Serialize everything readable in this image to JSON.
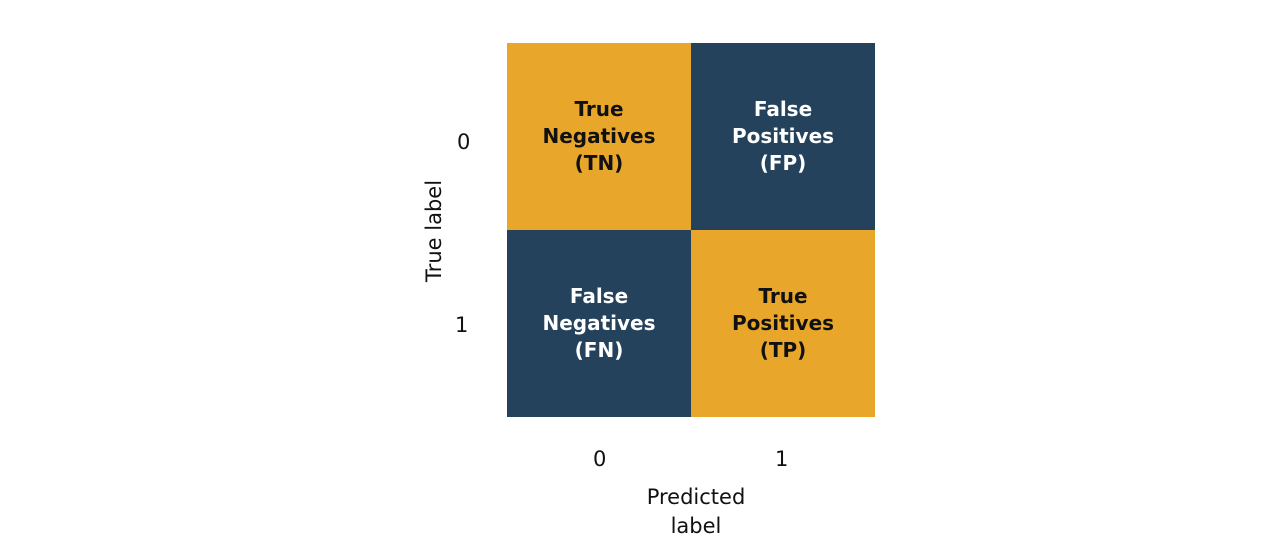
{
  "colors": {
    "orange": "#E8A72A",
    "navy": "#25425D",
    "dark_text": "#111111",
    "light_text": "#FFFFFF"
  },
  "matrix": {
    "cells": [
      {
        "row": 0,
        "col": 0,
        "lines": [
          "True",
          "Negatives",
          "(TN)"
        ],
        "fill": "orange"
      },
      {
        "row": 0,
        "col": 1,
        "lines": [
          "False",
          "Positives",
          "(FP)"
        ],
        "fill": "navy"
      },
      {
        "row": 1,
        "col": 0,
        "lines": [
          "False",
          "Negatives",
          "(FN)"
        ],
        "fill": "navy"
      },
      {
        "row": 1,
        "col": 1,
        "lines": [
          "True",
          "Positives",
          "(TP)"
        ],
        "fill": "orange"
      }
    ]
  },
  "axes": {
    "y": {
      "label": "True label",
      "ticks": [
        "0",
        "1"
      ]
    },
    "x": {
      "label_lines": [
        "Predicted",
        "label"
      ],
      "ticks": [
        "0",
        "1"
      ]
    }
  }
}
